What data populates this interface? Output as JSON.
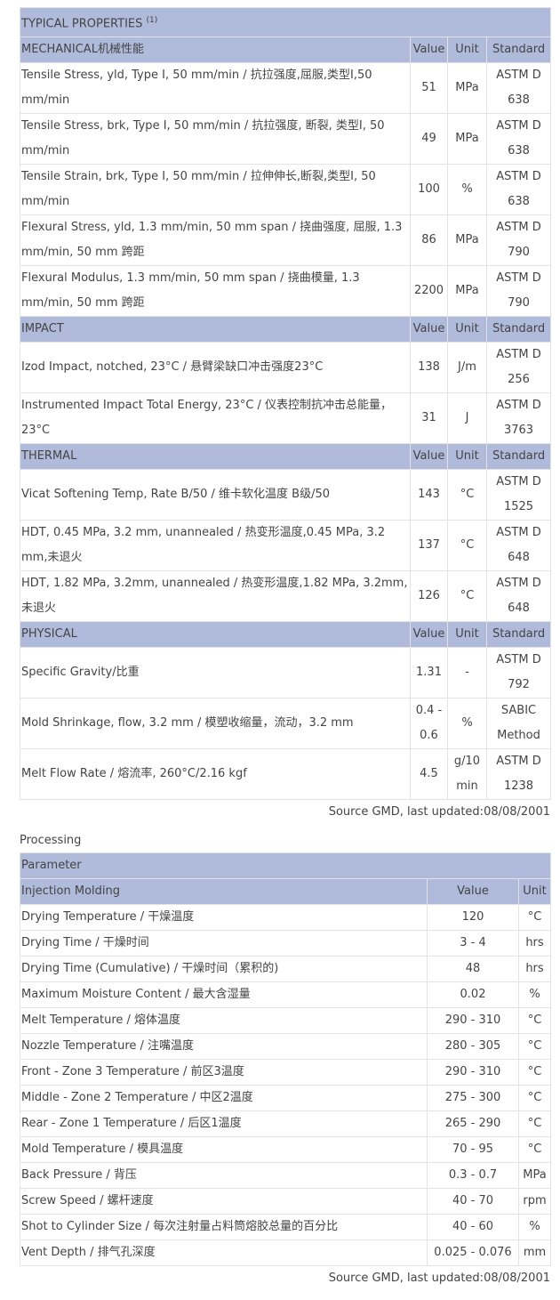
{
  "typical": {
    "title": "TYPICAL PROPERTIES",
    "title_note": "(1)",
    "columns": [
      "Value",
      "Unit",
      "Standard"
    ],
    "sections": [
      {
        "name": "MECHANICAL机械性能",
        "rows": [
          [
            "Tensile Stress, yld, Type I, 50 mm/min / 抗拉强度,屈服,类型I,50 mm/min",
            "51",
            "MPa",
            "ASTM D 638"
          ],
          [
            "Tensile Stress, brk, Type I, 50 mm/min / 抗拉强度, 断裂, 类型I, 50 mm/min",
            "49",
            "MPa",
            "ASTM D 638"
          ],
          [
            "Tensile Strain, brk, Type I, 50 mm/min / 拉伸伸长,断裂,类型I, 50 mm/min",
            "100",
            "%",
            "ASTM D 638"
          ],
          [
            "Flexural Stress, yld, 1.3 mm/min, 50 mm span / 挠曲强度, 屈服, 1.3 mm/min, 50 mm 跨距",
            "86",
            "MPa",
            "ASTM D 790"
          ],
          [
            "Flexural Modulus, 1.3 mm/min, 50 mm span / 挠曲模量, 1.3 mm/min, 50 mm 跨距",
            "2200",
            "MPa",
            "ASTM D 790"
          ]
        ]
      },
      {
        "name": "IMPACT",
        "rows": [
          [
            "Izod Impact, notched, 23°C / 悬臂梁缺口冲击强度23°C",
            "138",
            "J/m",
            "ASTM D 256"
          ],
          [
            "Instrumented Impact Total Energy, 23°C / 仪表控制抗冲击总能量，23°C",
            "31",
            "J",
            "ASTM D 3763"
          ]
        ]
      },
      {
        "name": "THERMAL",
        "rows": [
          [
            "Vicat Softening Temp, Rate B/50 / 维卡软化温度 B级/50",
            "143",
            "°C",
            "ASTM D 1525"
          ],
          [
            "HDT, 0.45 MPa, 3.2 mm, unannealed / 热变形温度,0.45 MPa, 3.2 mm,未退火",
            "137",
            "°C",
            "ASTM D 648"
          ],
          [
            "HDT, 1.82 MPa, 3.2mm, unannealed / 热变形温度,1.82 MPa, 3.2mm,未退火",
            "126",
            "°C",
            "ASTM D 648"
          ]
        ]
      },
      {
        "name": "PHYSICAL",
        "rows": [
          [
            "Specific Gravity/比重",
            "1.31",
            "-",
            "ASTM D 792"
          ],
          [
            "Mold Shrinkage, flow, 3.2 mm / 模塑收缩量，流动，3.2 mm",
            "0.4 - 0.6",
            "%",
            "SABIC Method"
          ],
          [
            "Melt Flow Rate / 熔流率, 260°C/2.16 kgf",
            "4.5",
            "g/10 min",
            "ASTM D 1238"
          ]
        ]
      }
    ],
    "source": "Source GMD, last updated:08/08/2001"
  },
  "processing": {
    "heading": "Processing",
    "title": "Parameter",
    "section": "Injection Molding",
    "columns": [
      "Value",
      "Unit"
    ],
    "rows": [
      [
        "Drying Temperature / 干燥温度",
        "120",
        "°C"
      ],
      [
        "Drying Time / 干燥时间",
        "3 - 4",
        "hrs"
      ],
      [
        "Drying Time (Cumulative) / 干燥时间（累积的)",
        "48",
        "hrs"
      ],
      [
        "Maximum Moisture Content / 最大含湿量",
        "0.02",
        "%"
      ],
      [
        "Melt Temperature / 熔体温度",
        "290 - 310",
        "°C"
      ],
      [
        "Nozzle Temperature / 注嘴温度",
        "280 - 305",
        "°C"
      ],
      [
        "Front - Zone 3 Temperature / 前区3温度",
        "290 - 310",
        "°C"
      ],
      [
        "Middle - Zone 2 Temperature / 中区2温度",
        "275 - 300",
        "°C"
      ],
      [
        "Rear - Zone 1 Temperature / 后区1温度",
        "265 - 290",
        "°C"
      ],
      [
        "Mold Temperature / 模具温度",
        "70 - 95",
        "°C"
      ],
      [
        "Back Pressure / 背压",
        "0.3 - 0.7",
        "MPa"
      ],
      [
        "Screw Speed / 螺杆速度",
        "40 - 70",
        "rpm"
      ],
      [
        "Shot to Cylinder Size / 每次注射量占料筒熔胶总量的百分比",
        "40 - 60",
        "%"
      ],
      [
        "Vent Depth / 排气孔深度",
        "0.025 - 0.076",
        "mm"
      ]
    ],
    "source": "Source GMD, last updated:08/08/2001"
  }
}
